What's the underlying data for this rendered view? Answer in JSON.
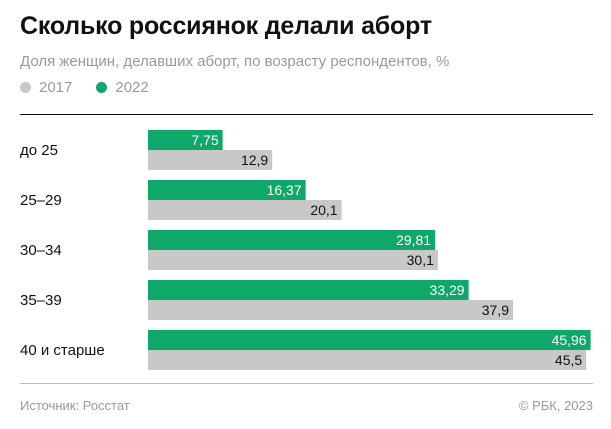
{
  "header": {
    "title": "Сколько россиянок делали аборт",
    "subtitle": "Доля женщин, делавших аборт, по возрасту респондентов, %"
  },
  "legend": [
    {
      "label": "2017",
      "color": "#c8c8c8"
    },
    {
      "label": "2022",
      "color": "#0ea86a"
    }
  ],
  "chart_data": {
    "type": "bar",
    "orientation": "horizontal",
    "title": "Сколько россиянок делали аборт",
    "subtitle": "Доля женщин, делавших аборт, по возрасту респондентов, %",
    "categories": [
      "до 25",
      "25–29",
      "30–34",
      "35–39",
      "40 и старше"
    ],
    "series": [
      {
        "name": "2022",
        "color": "#0ea86a",
        "values": [
          7.75,
          16.37,
          29.81,
          33.29,
          45.96
        ],
        "labels": [
          "7,75",
          "16,37",
          "29,81",
          "33,29",
          "45,96"
        ]
      },
      {
        "name": "2017",
        "color": "#c8c8c8",
        "values": [
          12.9,
          20.1,
          30.1,
          37.9,
          45.5
        ],
        "labels": [
          "12,9",
          "20,1",
          "30,1",
          "37,9",
          "45,5"
        ]
      }
    ],
    "xlim": [
      0,
      46
    ],
    "grid": false,
    "legend_position": "top-left"
  },
  "footer": {
    "source": "Источник: Росстат",
    "copyright": "© РБК, 2023"
  }
}
